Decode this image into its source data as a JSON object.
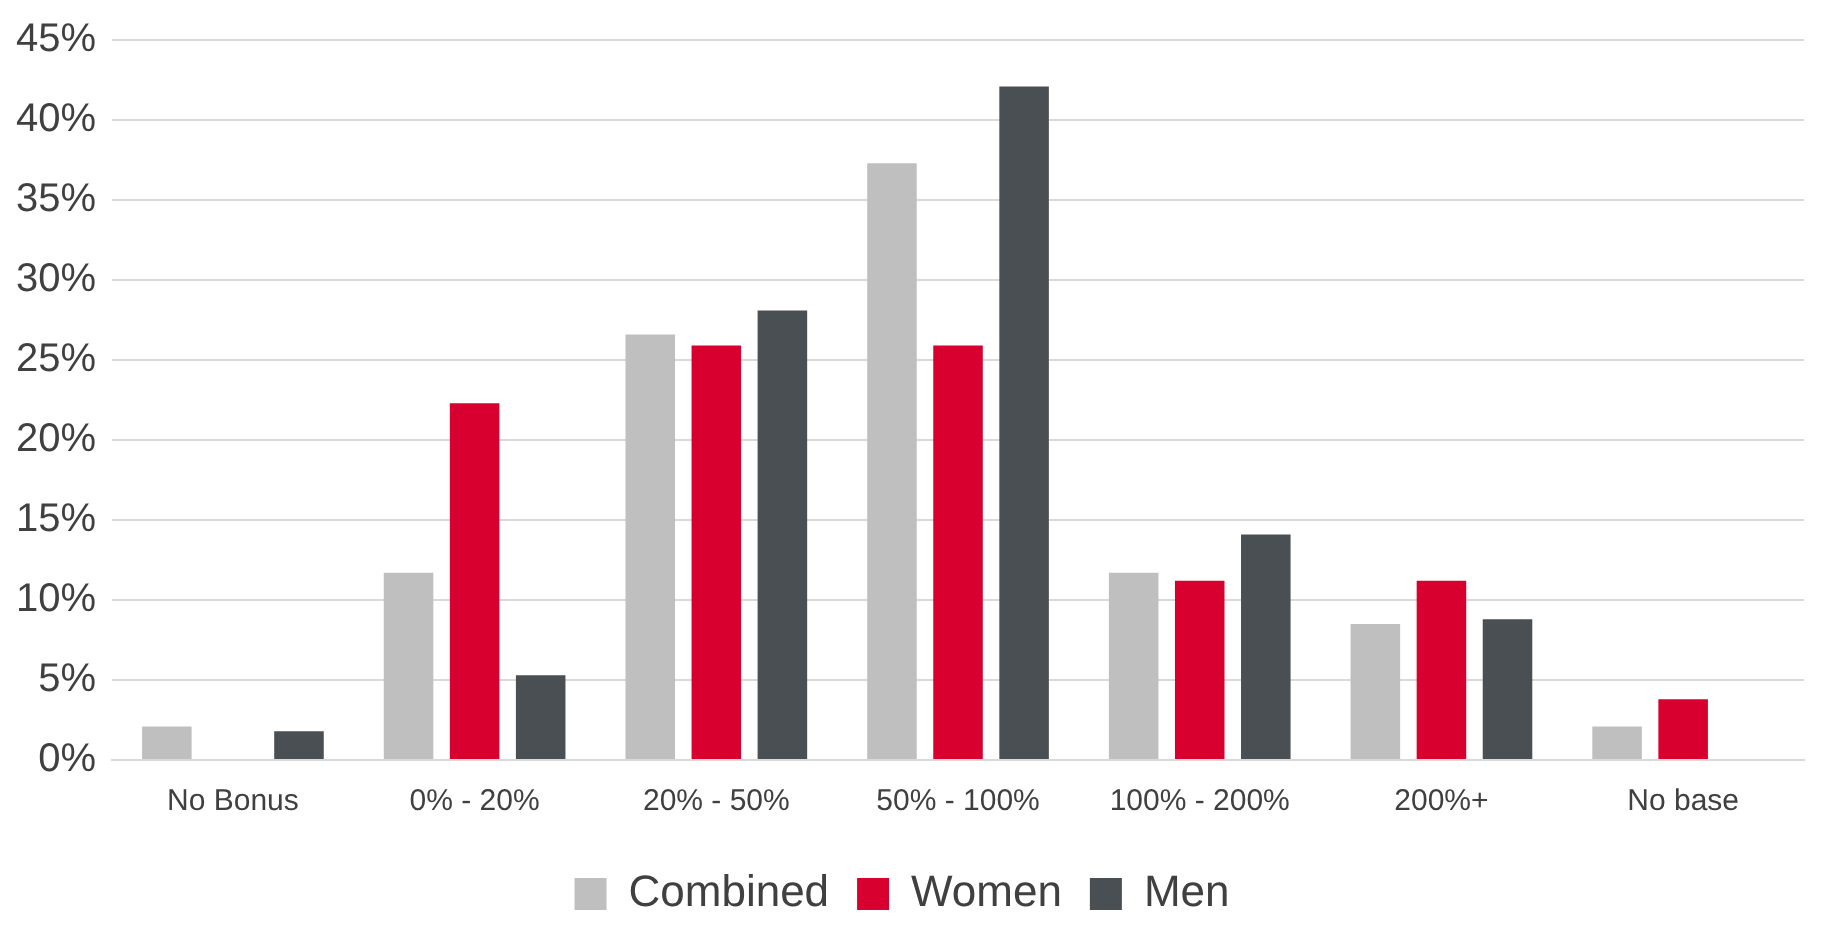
{
  "chart_data": {
    "type": "bar",
    "categories": [
      "No Bonus",
      "0% - 20%",
      "20% - 50%",
      "50% - 100%",
      "100% - 200%",
      "200%+",
      "No base"
    ],
    "series": [
      {
        "name": "Combined",
        "color": "#bfbfbf",
        "values": [
          2.1,
          11.7,
          26.6,
          37.3,
          11.7,
          8.5,
          2.1
        ]
      },
      {
        "name": "Women",
        "color": "#d7002f",
        "values": [
          null,
          22.3,
          25.9,
          25.9,
          11.2,
          11.2,
          3.8
        ]
      },
      {
        "name": "Men",
        "color": "#4a4f54",
        "values": [
          1.8,
          5.3,
          28.1,
          42.1,
          14.1,
          8.8,
          null
        ]
      }
    ],
    "ylim": [
      0,
      45
    ],
    "yticks": [
      {
        "value": 0,
        "label": "0%"
      },
      {
        "value": 5,
        "label": "5%"
      },
      {
        "value": 10,
        "label": "10%"
      },
      {
        "value": 15,
        "label": "15%"
      },
      {
        "value": 20,
        "label": "20%"
      },
      {
        "value": 25,
        "label": "25%"
      },
      {
        "value": 30,
        "label": "30%"
      },
      {
        "value": 35,
        "label": "35%"
      },
      {
        "value": 40,
        "label": "40%"
      },
      {
        "value": 45,
        "label": "45%"
      }
    ],
    "grid": "y",
    "legend": "bottom"
  }
}
